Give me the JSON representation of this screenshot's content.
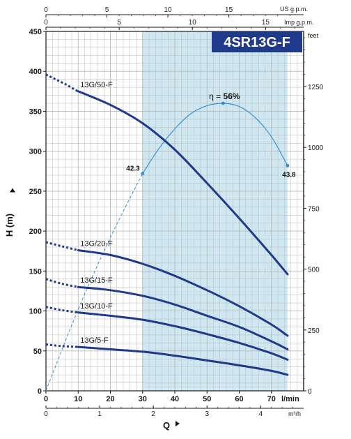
{
  "chart_data": {
    "type": "line",
    "title": "4SR13G-F",
    "colors": {
      "curve": "#1f3a8a",
      "efficiency": "#3a8fd0",
      "band_fill": "#cfe7f1",
      "title_bg": "#1f3a8a",
      "grid": "#b8b8b8"
    },
    "x_axis": {
      "label": "Q",
      "unit": "l/min",
      "range": [
        0,
        80
      ],
      "ticks": [
        "0",
        "10",
        "20",
        "30",
        "40",
        "50",
        "60",
        "70"
      ],
      "tick_values": [
        0,
        10,
        20,
        30,
        40,
        50,
        60,
        70
      ]
    },
    "x_axis_m3h": {
      "unit": "m³/h",
      "ticks": [
        "0",
        "1",
        "2",
        "3",
        "4"
      ],
      "tick_values": [
        0,
        1,
        2,
        3,
        4
      ]
    },
    "x_axis_us_gpm": {
      "unit": "US g.p.m.",
      "ticks": [
        "0",
        "5",
        "10",
        "15"
      ],
      "tick_values": [
        0,
        5,
        10,
        15
      ]
    },
    "x_axis_imp_gpm": {
      "unit": "Imp g.p.m.",
      "ticks": [
        "0",
        "5",
        "10",
        "15"
      ],
      "tick_values": [
        0,
        5,
        10,
        15
      ]
    },
    "y_axis": {
      "label": "H (m)",
      "range": [
        0,
        450
      ],
      "ticks": [
        "0",
        "50",
        "100",
        "150",
        "200",
        "250",
        "300",
        "350",
        "400",
        "450"
      ],
      "tick_values": [
        0,
        50,
        100,
        150,
        200,
        250,
        300,
        350,
        400,
        450
      ]
    },
    "y_axis_feet": {
      "unit": "feet",
      "ticks": [
        "0",
        "250",
        "500",
        "750",
        "1000",
        "1250"
      ],
      "tick_values": [
        0,
        250,
        500,
        750,
        1000,
        1250
      ]
    },
    "operating_range": [
      30,
      75
    ],
    "series": [
      {
        "name": "13G/50-F",
        "dashed": {
          "x": [
            0,
            3,
            6,
            9,
            10
          ],
          "y": [
            396,
            390,
            384,
            377,
            375
          ]
        },
        "x": [
          10,
          20,
          30,
          40,
          50,
          60,
          70,
          75
        ],
        "y": [
          375,
          358,
          335,
          302,
          260,
          216,
          170,
          146
        ]
      },
      {
        "name": "13G/20-F",
        "dashed": {
          "x": [
            0,
            5,
            10
          ],
          "y": [
            186,
            181,
            176
          ]
        },
        "x": [
          10,
          20,
          30,
          40,
          50,
          60,
          70,
          75
        ],
        "y": [
          176,
          170,
          159,
          144,
          126,
          106,
          83,
          69
        ]
      },
      {
        "name": "13G/15-F",
        "dashed": {
          "x": [
            0,
            5,
            10
          ],
          "y": [
            140,
            134,
            130
          ]
        },
        "x": [
          10,
          20,
          30,
          40,
          50,
          60,
          70,
          75
        ],
        "y": [
          130,
          126,
          119,
          108,
          94,
          80,
          62,
          52
        ]
      },
      {
        "name": "13G/10-F",
        "dashed": {
          "x": [
            0,
            5,
            10
          ],
          "y": [
            105,
            101,
            98
          ]
        },
        "x": [
          10,
          20,
          30,
          40,
          50,
          60,
          70,
          75
        ],
        "y": [
          98,
          94,
          89,
          81,
          71,
          60,
          47,
          39
        ]
      },
      {
        "name": "13G/5-F",
        "dashed": {
          "x": [
            0,
            5,
            10
          ],
          "y": [
            58,
            56,
            55
          ]
        },
        "x": [
          10,
          20,
          30,
          40,
          50,
          60,
          70,
          75
        ],
        "y": [
          55,
          52,
          49,
          44,
          38,
          32,
          25,
          20
        ]
      }
    ],
    "efficiency_curve": {
      "dashed": {
        "x": [
          0,
          10,
          20,
          30
        ],
        "y": [
          0,
          102,
          192,
          272
        ]
      },
      "x": [
        30,
        35,
        40,
        45,
        50,
        55,
        60,
        65,
        70,
        75
      ],
      "y": [
        272,
        303,
        328,
        347,
        357,
        360,
        356,
        342,
        318,
        282
      ],
      "peak": {
        "x": 55,
        "y": 360,
        "label": "η = ",
        "value": "56%"
      },
      "start_label": "42.3",
      "end_label": "43.8"
    }
  }
}
